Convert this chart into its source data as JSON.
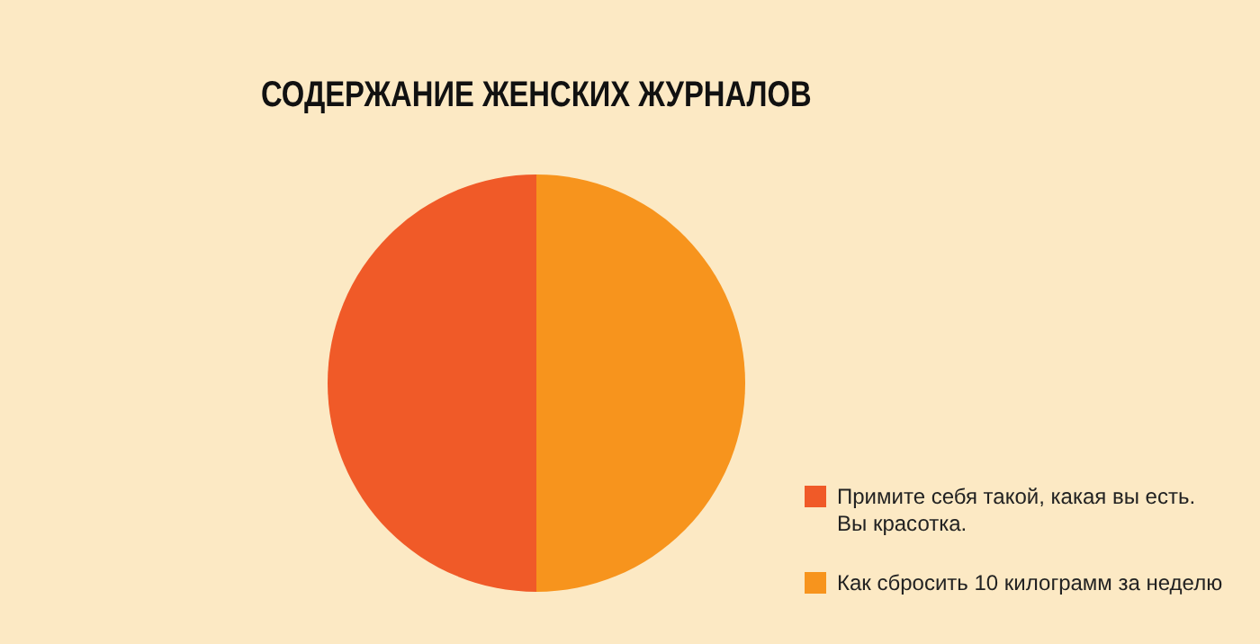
{
  "chart_data": {
    "type": "pie",
    "title": "СОДЕРЖАНИЕ ЖЕНСКИХ ЖУРНАЛОВ",
    "categories": [
      "Примите себя такой, какая вы есть. Вы красотка.",
      "Как сбросить 10 килограмм за неделю"
    ],
    "values": [
      50,
      50
    ],
    "colors": [
      "#f05a28",
      "#f7941d"
    ],
    "legend": "bottom right"
  }
}
